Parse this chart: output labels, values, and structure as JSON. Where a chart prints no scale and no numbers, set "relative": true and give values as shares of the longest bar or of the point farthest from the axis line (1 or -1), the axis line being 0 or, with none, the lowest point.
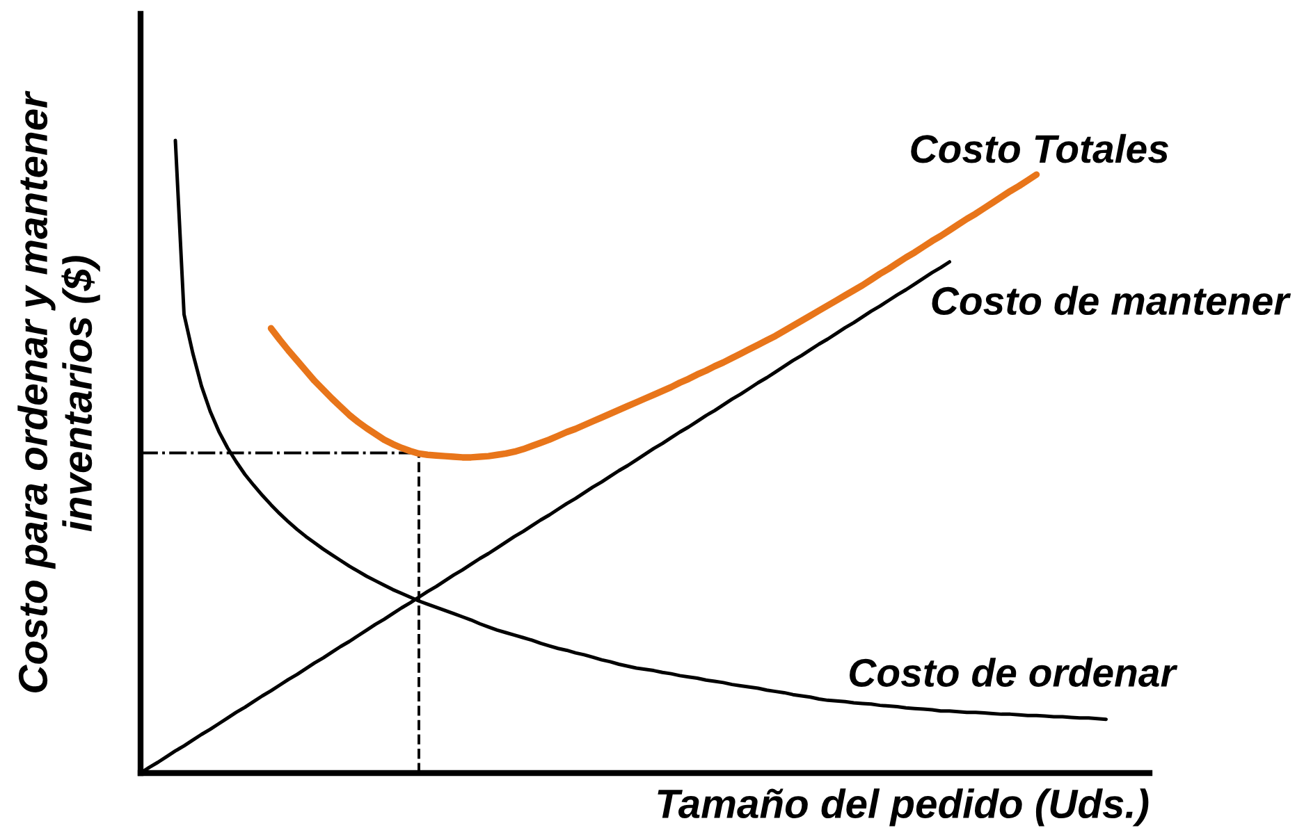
{
  "chart_data": {
    "type": "line",
    "relative": true,
    "tick_labels": false,
    "xlabel": "Tamaño del pedido (Uds.)",
    "ylabel": "Costo para ordenar y mantener\ninventarios ($)",
    "categories": [
      null,
      null,
      null,
      null,
      null,
      null,
      null,
      null,
      null,
      null,
      null,
      null,
      null,
      null,
      null,
      null,
      null,
      null,
      null,
      null,
      null,
      null,
      null,
      null,
      null,
      null,
      null,
      null,
      null,
      null,
      null,
      null,
      null,
      null,
      null,
      null,
      null,
      null,
      null,
      null,
      null,
      null,
      null,
      null,
      null,
      null,
      null,
      null,
      null,
      null,
      null,
      null,
      null,
      null,
      null,
      null,
      null,
      null,
      null,
      null,
      null,
      null,
      null,
      null,
      null,
      null,
      null,
      null,
      null,
      null,
      null,
      null,
      null,
      null,
      null,
      null,
      null,
      null,
      null,
      null,
      null,
      null,
      null,
      null,
      null,
      null,
      null,
      null,
      null,
      null,
      null,
      null,
      null,
      null,
      null,
      null,
      null,
      null,
      null,
      null,
      null,
      null,
      null,
      null,
      null,
      null,
      null,
      null,
      null,
      null,
      null,
      null,
      null,
      null,
      null,
      null,
      null
    ],
    "series": [
      {
        "name": "Costo Totales",
        "color": "#e8751a",
        "values": [
          null,
          null,
          null,
          null,
          null,
          null,
          null,
          null,
          null,
          null,
          null,
          null,
          null,
          null,
          null,
          0.703,
          0.685,
          0.668,
          0.652,
          0.636,
          0.62,
          0.606,
          0.592,
          0.579,
          0.566,
          0.555,
          0.545,
          0.536,
          0.527,
          0.52,
          0.514,
          0.509,
          0.505,
          0.503,
          0.502,
          0.501,
          0.5,
          0.499,
          0.499,
          0.5,
          0.501,
          0.503,
          0.505,
          0.508,
          0.512,
          0.517,
          0.522,
          0.527,
          0.533,
          0.539,
          0.544,
          0.55,
          0.556,
          0.562,
          0.568,
          0.574,
          0.58,
          0.586,
          0.592,
          0.598,
          0.604,
          0.61,
          0.617,
          0.623,
          0.63,
          0.636,
          0.643,
          0.649,
          0.656,
          0.663,
          0.67,
          0.677,
          0.684,
          0.691,
          0.699,
          0.707,
          0.715,
          0.723,
          0.731,
          0.739,
          0.747,
          0.755,
          0.763,
          0.771,
          0.78,
          0.789,
          0.797,
          0.806,
          0.815,
          0.823,
          0.832,
          0.841,
          0.849,
          0.858,
          0.867,
          0.876,
          0.884,
          0.893,
          0.902,
          0.911,
          0.92,
          0.928,
          0.937,
          0.946,
          null,
          null,
          null,
          null,
          null,
          null,
          null,
          null,
          null,
          null,
          null,
          null,
          null
        ]
      },
      {
        "name": "Costo de mantener",
        "color": "#000000",
        "values": [
          0,
          0.009,
          0.017,
          0.026,
          0.035,
          0.043,
          0.052,
          0.061,
          0.069,
          0.078,
          0.087,
          0.096,
          0.104,
          0.113,
          0.122,
          0.13,
          0.139,
          0.148,
          0.156,
          0.165,
          0.174,
          0.182,
          0.191,
          0.2,
          0.208,
          0.217,
          0.226,
          0.235,
          0.243,
          0.252,
          0.261,
          0.269,
          0.278,
          0.287,
          0.295,
          0.304,
          0.313,
          0.321,
          0.33,
          0.339,
          0.347,
          0.356,
          0.365,
          0.374,
          0.382,
          0.391,
          0.4,
          0.408,
          0.417,
          0.426,
          0.434,
          0.443,
          0.452,
          0.46,
          0.469,
          0.478,
          0.486,
          0.495,
          0.504,
          0.513,
          0.521,
          0.53,
          0.539,
          0.547,
          0.556,
          0.565,
          0.573,
          0.582,
          0.591,
          0.599,
          0.608,
          0.617,
          0.625,
          0.634,
          0.643,
          0.652,
          0.66,
          0.669,
          0.678,
          0.686,
          0.695,
          0.704,
          0.712,
          0.721,
          0.73,
          0.738,
          0.747,
          0.756,
          0.764,
          0.773,
          0.782,
          0.791,
          0.799,
          0.808,
          null,
          null,
          null,
          null,
          null,
          null,
          null,
          null,
          null,
          null,
          null,
          null,
          null,
          null,
          null,
          null,
          null,
          null,
          null,
          null,
          null,
          null,
          null
        ]
      },
      {
        "name": "Costo de ordenar",
        "color": "#000000",
        "values": [
          null,
          null,
          null,
          null,
          1.0,
          0.725,
          0.664,
          0.612,
          0.572,
          0.54,
          0.514,
          0.492,
          0.472,
          0.455,
          0.439,
          0.424,
          0.41,
          0.397,
          0.385,
          0.374,
          0.364,
          0.354,
          0.345,
          0.336,
          0.327,
          0.319,
          0.311,
          0.304,
          0.297,
          0.29,
          0.284,
          0.278,
          0.272,
          0.267,
          0.262,
          0.257,
          0.252,
          0.247,
          0.242,
          0.236,
          0.231,
          0.226,
          0.222,
          0.218,
          0.214,
          0.21,
          0.205,
          0.201,
          0.197,
          0.194,
          0.19,
          0.187,
          0.183,
          0.179,
          0.176,
          0.172,
          0.169,
          0.166,
          0.164,
          0.162,
          0.159,
          0.157,
          0.154,
          0.152,
          0.15,
          0.147,
          0.145,
          0.143,
          0.14,
          0.138,
          0.136,
          0.134,
          0.131,
          0.129,
          0.127,
          0.124,
          0.122,
          0.12,
          0.117,
          0.115,
          0.114,
          0.113,
          0.111,
          0.11,
          0.109,
          0.107,
          0.106,
          0.105,
          0.103,
          0.102,
          0.101,
          0.1,
          0.098,
          0.098,
          0.097,
          0.096,
          0.096,
          0.095,
          0.094,
          0.093,
          0.093,
          0.092,
          0.091,
          0.091,
          0.09,
          0.089,
          0.089,
          0.088,
          0.087,
          0.087,
          0.086,
          0.085,
          null,
          null,
          null,
          null,
          null
        ]
      }
    ],
    "ref_lines": [
      {
        "axis": "y",
        "value": 0.506,
        "line_style": "dashdot"
      }
    ]
  }
}
